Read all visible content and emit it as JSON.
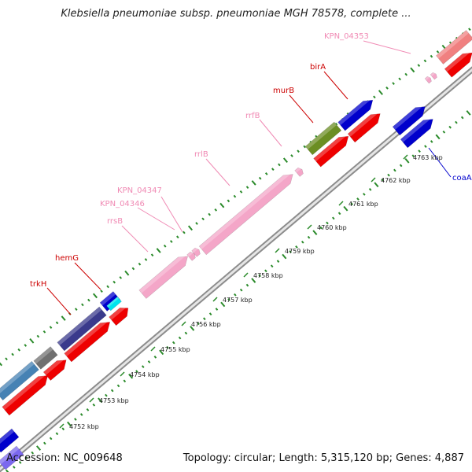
{
  "header": {
    "title": "Klebsiella pneumoniae subsp. pneumoniae MGH 78578, complete ..."
  },
  "footer": {
    "accession": "Accession: NC_009648",
    "summary": "Topology: circular; Length: 5,315,120 bp; Genes: 4,887"
  },
  "colors": {
    "gene_label": "#cc0000",
    "rna_label": "#f08ab4",
    "coaA_label": "#0000cc",
    "dots": "#2a8a2a",
    "backbone": "#909090"
  },
  "ticks": [
    {
      "label": "4752 kbp"
    },
    {
      "label": "4753 kbp"
    },
    {
      "label": "4754 kbp"
    },
    {
      "label": "4755 kbp"
    },
    {
      "label": "4756 kbp"
    },
    {
      "label": "4757 kbp"
    },
    {
      "label": "4758 kbp"
    },
    {
      "label": "4759 kbp"
    },
    {
      "label": "4760 kbp"
    },
    {
      "label": "4761 kbp"
    },
    {
      "label": "4762 kbp"
    },
    {
      "label": "4763 kbp"
    }
  ],
  "features": [
    {
      "name": "trkH",
      "kind": "gene"
    },
    {
      "name": "hemG",
      "kind": "gene"
    },
    {
      "name": "rrsB",
      "kind": "rna"
    },
    {
      "name": "KPN_04346",
      "kind": "rna"
    },
    {
      "name": "KPN_04347",
      "kind": "rna"
    },
    {
      "name": "rrlB",
      "kind": "rna"
    },
    {
      "name": "rrfB",
      "kind": "rna"
    },
    {
      "name": "murB",
      "kind": "gene"
    },
    {
      "name": "birA",
      "kind": "gene"
    },
    {
      "name": "KPN_04353",
      "kind": "rna"
    },
    {
      "name": "coaA",
      "kind": "coa"
    }
  ]
}
